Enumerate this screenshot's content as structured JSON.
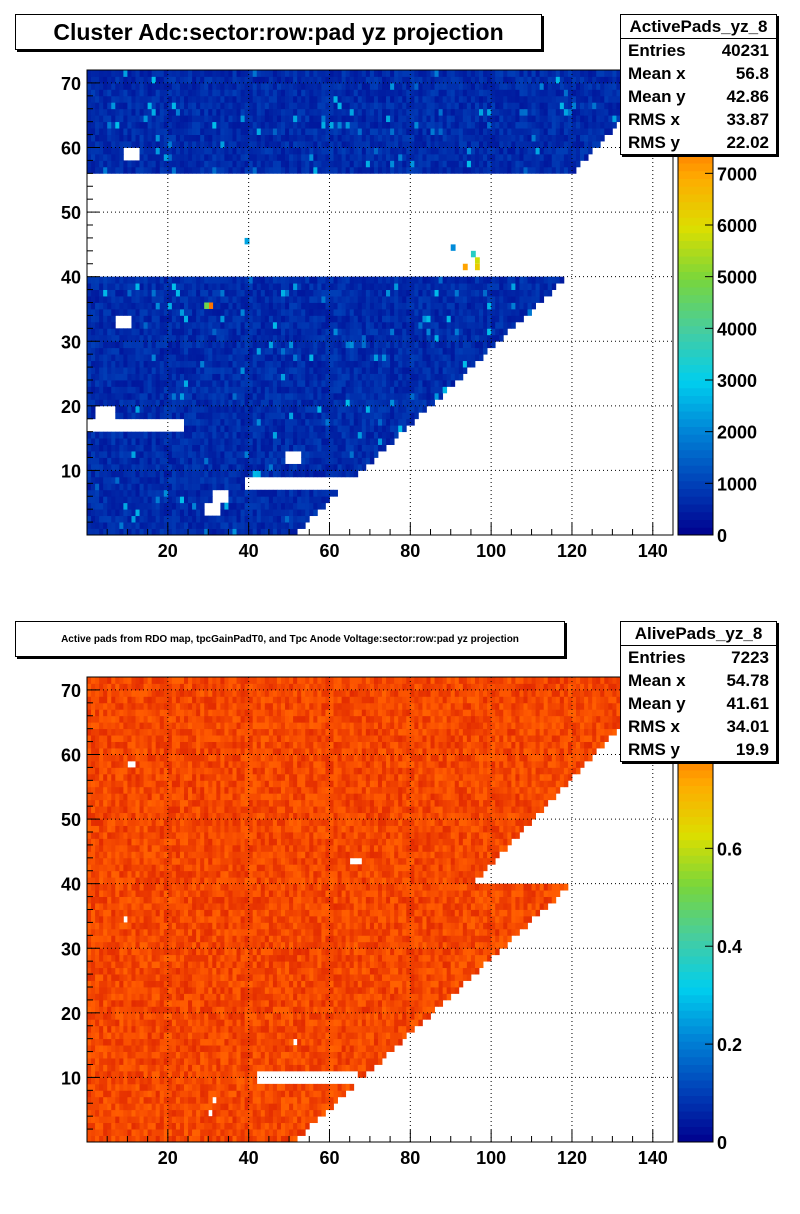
{
  "chart_data": [
    {
      "type": "heatmap",
      "title": "Cluster Adc:sector:row:pad yz projection",
      "stats": {
        "name": "ActivePads_yz_8",
        "rows": [
          {
            "label": "Entries",
            "value": "40231"
          },
          {
            "label": "Mean x",
            "value": "56.8"
          },
          {
            "label": "Mean y",
            "value": "42.86"
          },
          {
            "label": "RMS x",
            "value": "33.87"
          },
          {
            "label": "RMS y",
            "value": "22.02"
          }
        ]
      },
      "xlim": [
        0,
        145
      ],
      "ylim": [
        0,
        72
      ],
      "x_ticks": [
        20,
        40,
        60,
        80,
        100,
        120,
        140
      ],
      "y_ticks": [
        10,
        20,
        30,
        40,
        50,
        60,
        70
      ],
      "z_range": [
        0,
        9000
      ],
      "z_ticks": [
        0,
        1000,
        2000,
        3000,
        4000,
        5000,
        6000,
        7000,
        8000
      ],
      "grid": true,
      "typical_value": 600,
      "inner_sector": {
        "rows": [
          1,
          40
        ],
        "pads_row1": 52,
        "pads_row40": 118
      },
      "outer_sector": {
        "rows": [
          57,
          72
        ],
        "pads_row57": 121,
        "pads_row72": 143
      },
      "empty_regions": [
        {
          "rows": [
            8,
            9
          ],
          "pads": [
            40,
            68
          ]
        },
        {
          "rows": [
            17,
            18
          ],
          "pads": [
            1,
            24
          ]
        },
        {
          "rows": [
            19,
            20
          ],
          "pads": [
            3,
            7
          ]
        },
        {
          "rows": [
            12,
            13
          ],
          "pads": [
            50,
            53
          ]
        },
        {
          "rows": [
            33,
            34
          ],
          "pads": [
            8,
            11
          ]
        },
        {
          "rows": [
            6,
            7
          ],
          "pads": [
            32,
            35
          ]
        },
        {
          "rows": [
            4,
            5
          ],
          "pads": [
            30,
            33
          ]
        },
        {
          "rows": [
            59,
            60
          ],
          "pads": [
            10,
            13
          ]
        }
      ],
      "hotspots": [
        {
          "row": 36,
          "pad": 31,
          "value": 7600
        },
        {
          "row": 36,
          "pad": 30,
          "value": 4800
        },
        {
          "row": 46,
          "pad": 40,
          "value": 2400
        },
        {
          "row": 45,
          "pad": 91,
          "value": 2100
        },
        {
          "row": 44,
          "pad": 96,
          "value": 3500
        },
        {
          "row": 43,
          "pad": 97,
          "value": 5800
        },
        {
          "row": 42,
          "pad": 94,
          "value": 7000
        },
        {
          "row": 42,
          "pad": 97,
          "value": 6300
        }
      ]
    },
    {
      "type": "heatmap",
      "title": "Active pads from RDO map, tpcGainPadT0,  and Tpc Anode Voltage:sector:row:pad yz projection",
      "stats": {
        "name": "AlivePads_yz_8",
        "rows": [
          {
            "label": "Entries",
            "value": "7223"
          },
          {
            "label": "Mean x",
            "value": "54.78"
          },
          {
            "label": "Mean y",
            "value": "41.61"
          },
          {
            "label": "RMS x",
            "value": "34.01"
          },
          {
            "label": "RMS y",
            "value": "19.9"
          }
        ]
      },
      "xlim": [
        0,
        145
      ],
      "ylim": [
        0,
        72
      ],
      "x_ticks": [
        20,
        40,
        60,
        80,
        100,
        120,
        140
      ],
      "y_ticks": [
        10,
        20,
        30,
        40,
        50,
        60,
        70
      ],
      "z_range": [
        0,
        0.95
      ],
      "z_ticks": [
        0,
        0.2,
        0.4,
        0.6,
        0.8
      ],
      "grid": true,
      "typical_value": 0.86,
      "inner_sector": {
        "rows": [
          1,
          40
        ],
        "pads_row1": 52,
        "pads_row40": 119
      },
      "outer_sector": {
        "rows": [
          41,
          72
        ],
        "pads_row41": 96,
        "pads_row72": 143
      },
      "empty_regions": [
        {
          "rows": [
            10,
            11
          ],
          "pads": [
            43,
            67
          ]
        },
        {
          "rows": [
            44,
            44
          ],
          "pads": [
            66,
            68
          ]
        },
        {
          "rows": [
            59,
            59
          ],
          "pads": [
            11,
            12
          ]
        },
        {
          "rows": [
            35,
            35
          ],
          "pads": [
            10,
            10
          ]
        },
        {
          "rows": [
            7,
            7
          ],
          "pads": [
            32,
            32
          ]
        },
        {
          "rows": [
            5,
            5
          ],
          "pads": [
            31,
            31
          ]
        },
        {
          "rows": [
            16,
            16
          ],
          "pads": [
            52,
            52
          ]
        }
      ]
    }
  ]
}
